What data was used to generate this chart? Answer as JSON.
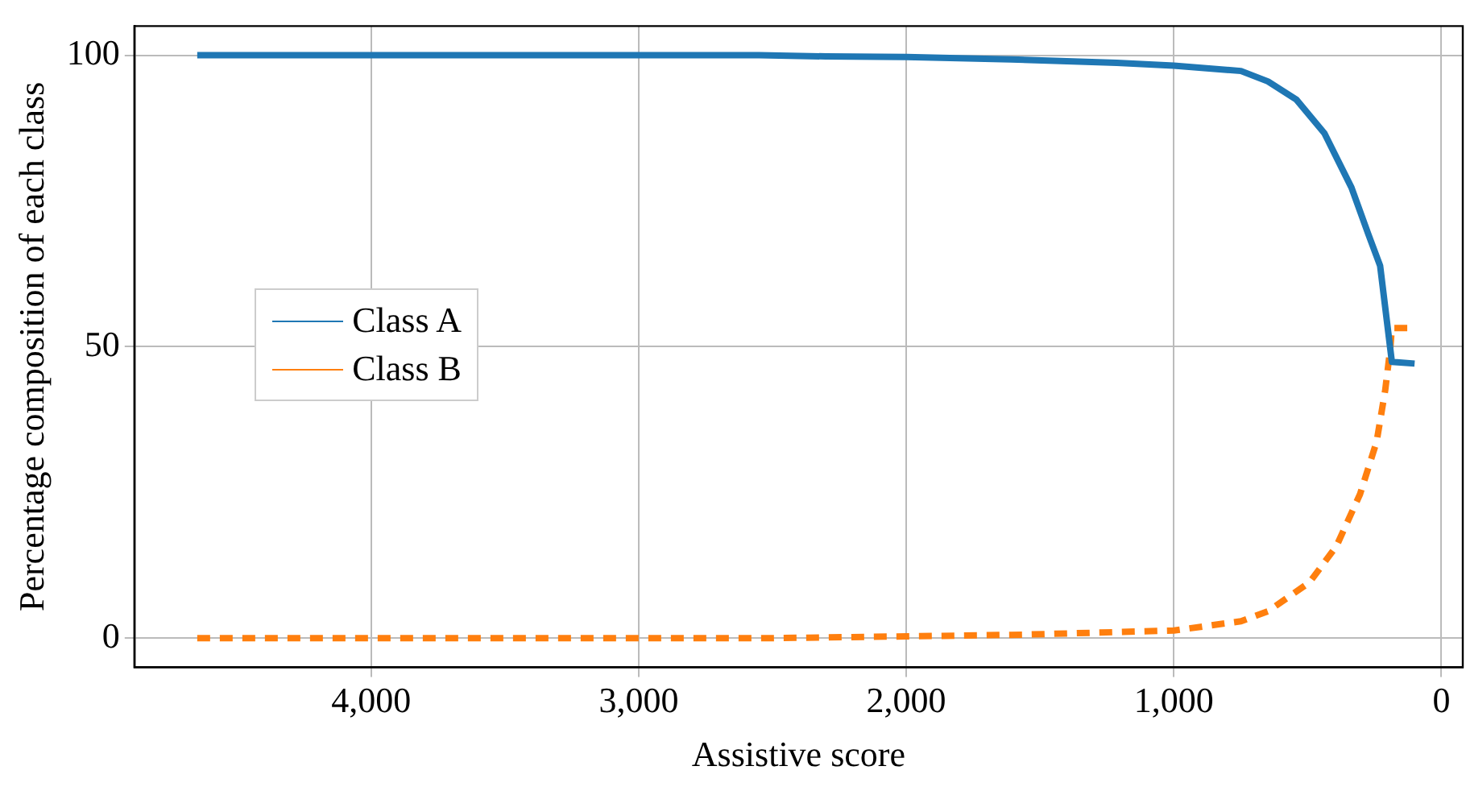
{
  "chart_data": {
    "type": "line",
    "xlabel": "Assistive score",
    "ylabel": "Percentage composition of each class",
    "xlim": [
      4885,
      -80
    ],
    "ylim": [
      -5,
      105
    ],
    "xticks": [
      {
        "value": 4000,
        "label": "4,000"
      },
      {
        "value": 3000,
        "label": "3,000"
      },
      {
        "value": 2000,
        "label": "2,000"
      },
      {
        "value": 1000,
        "label": "1,000"
      },
      0
    ],
    "yticks": [
      0,
      50,
      100
    ],
    "grid": true,
    "legend": "left",
    "marker": "none",
    "series": [
      {
        "name": "Class A",
        "color": "#1f77b4",
        "line_style": "solid",
        "x": [
          4650,
          4000,
          3000,
          2550,
          2300,
          2000,
          1609,
          1213,
          1000,
          749,
          648,
          542,
          437,
          336,
          273,
          229,
          185,
          100
        ],
        "values": [
          100,
          100,
          100,
          100,
          99.8,
          99.7,
          99.3,
          98.7,
          98.2,
          97.3,
          95.5,
          92.4,
          86.6,
          77.3,
          69.3,
          63.9,
          47.4,
          47.1
        ]
      },
      {
        "name": "Class B",
        "color": "#ff7f0e",
        "line_style": "dashed",
        "x": [
          4650,
          4000,
          3000,
          2500,
          2000,
          1565,
          1000,
          749,
          648,
          492,
          392,
          304,
          242,
          210,
          191,
          185,
          100
        ],
        "values": [
          0,
          0,
          0,
          0,
          0.3,
          0.6,
          1.3,
          2.9,
          4.6,
          9.6,
          15.8,
          24.7,
          33.7,
          42.5,
          49.7,
          53.2,
          53.2
        ]
      }
    ]
  }
}
